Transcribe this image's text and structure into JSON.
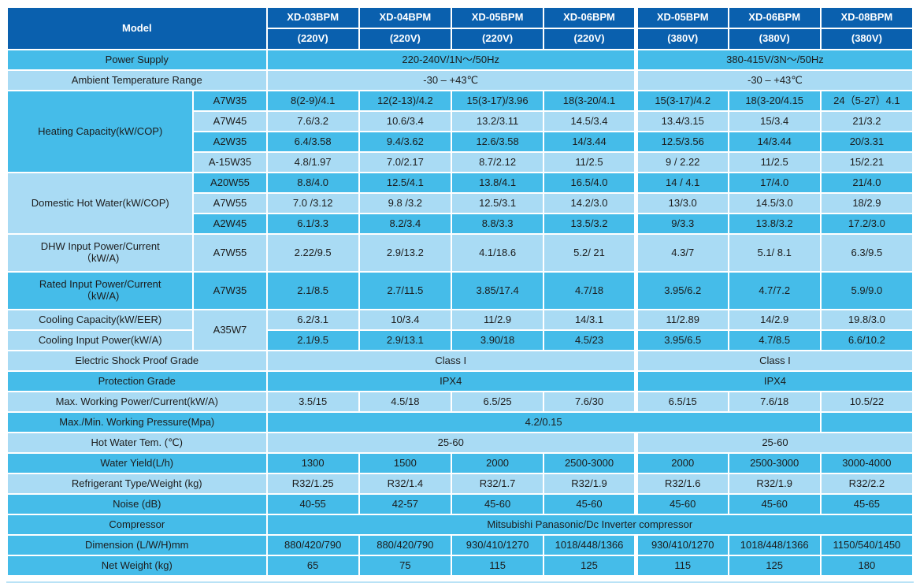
{
  "colors": {
    "header_blue": "#0a60ae",
    "row_medium_blue": "#45bce9",
    "row_light_blue": "#a9dbf4",
    "border_white": "#ffffff",
    "text_dark": "#1c1c1c",
    "header_text": "#ffffff",
    "bottom_divider": "#b9e2f6"
  },
  "table": {
    "header": {
      "model_label": "Model",
      "columns": [
        {
          "model": "XD-03BPM",
          "voltage": "(220V)"
        },
        {
          "model": "XD-04BPM",
          "voltage": "(220V)"
        },
        {
          "model": "XD-05BPM",
          "voltage": "(220V)"
        },
        {
          "model": "XD-06BPM",
          "voltage": "(220V)"
        },
        {
          "model": "XD-05BPM",
          "voltage": "(380V)"
        },
        {
          "model": "XD-06BPM",
          "voltage": "(380V)"
        },
        {
          "model": "XD-08BPM",
          "voltage": "(380V)"
        }
      ]
    },
    "rows": [
      {
        "label": "Power Supply",
        "label_colspan": 2,
        "shade": "m",
        "cells": [
          {
            "t": "220-240V/1N～/50Hz",
            "span": 4
          },
          {
            "t": "380-415V/3N～/50Hz",
            "span": 3
          }
        ]
      },
      {
        "label": "Ambient Temperature Range",
        "label_colspan": 2,
        "shade": "l",
        "cells": [
          {
            "t": "-30 – +43℃",
            "span": 4
          },
          {
            "t": "-30 – +43℃",
            "span": 3
          }
        ]
      },
      {
        "label": "Heating Capacity(kW/COP)",
        "label_colspan": 1,
        "label_rowspan": 4,
        "label_shade": "m",
        "sub": "A7W35",
        "shade": "m",
        "cells": [
          "8(2-9)/4.1",
          "12(2-13)/4.2",
          "15(3-17)/3.96",
          "18(3-20/4.1",
          "15(3-17)/4.2",
          "18(3-20/4.15",
          "24（5-27）4.1"
        ]
      },
      {
        "sub": "A7W45",
        "shade": "l",
        "cells": [
          "7.6/3.2",
          "10.6/3.4",
          "13.2/3.11",
          "14.5/3.4",
          "13.4/3.15",
          "15/3.4",
          "21/3.2"
        ]
      },
      {
        "sub": "A2W35",
        "shade": "m",
        "cells": [
          "6.4/3.58",
          "9.4/3.62",
          "12.6/3.58",
          "14/3.44",
          "12.5/3.56",
          "14/3.44",
          "20/3.31"
        ]
      },
      {
        "sub": "A-15W35",
        "shade": "l",
        "cells": [
          "4.8/1.97",
          "7.0/2.17",
          "8.7/2.12",
          "11/2.5",
          "9 / 2.22",
          "11/2.5",
          "15/2.21"
        ]
      },
      {
        "label": "Domestic Hot Water(kW/COP)",
        "label_colspan": 1,
        "label_rowspan": 3,
        "label_shade": "l",
        "sub": "A20W55",
        "shade": "m",
        "cells": [
          "8.8/4.0",
          "12.5/4.1",
          "13.8/4.1",
          "16.5/4.0",
          "14 / 4.1",
          "17/4.0",
          "21/4.0"
        ]
      },
      {
        "sub": "A7W55",
        "shade": "l",
        "cells": [
          "7.0 /3.12",
          "9.8 /3.2",
          "12.5/3.1",
          "14.2/3.0",
          "13/3.0",
          "14.5/3.0",
          "18/2.9"
        ]
      },
      {
        "sub": "A2W45",
        "shade": "m",
        "cells": [
          "6.1/3.3",
          "8.2/3.4",
          "8.8/3.3",
          "13.5/3.2",
          "9/3.3",
          "13.8/3.2",
          "17.2/3.0"
        ]
      },
      {
        "label": "DHW Input Power/Current\n（kW/A)",
        "label_colspan": 1,
        "sub": "A7W55",
        "shade": "l",
        "tall": true,
        "cells": [
          "2.22/9.5",
          "2.9/13.2",
          "4.1/18.6",
          "5.2/ 21",
          "4.3/7",
          "5.1/ 8.1",
          "6.3/9.5"
        ]
      },
      {
        "label": "Rated Input Power/Current\n（kW/A)",
        "label_colspan": 1,
        "sub": "A7W35",
        "shade": "m",
        "tall": true,
        "cells": [
          "2.1/8.5",
          "2.7/11.5",
          "3.85/17.4",
          "4.7/18",
          "3.95/6.2",
          "4.7/7.2",
          "5.9/9.0"
        ]
      },
      {
        "label": "Cooling Capacity(kW/EER)",
        "label_colspan": 1,
        "label_shade": "l",
        "sub": "A35W7",
        "sub_rowspan": 2,
        "sub_shade": "l",
        "shade": "l",
        "cells": [
          "6.2/3.1",
          "10/3.4",
          "11/2.9",
          "14/3.1",
          "11/2.89",
          "14/2.9",
          "19.8/3.0"
        ]
      },
      {
        "label": "Cooling Input Power(kW/A)",
        "label_colspan": 1,
        "label_shade": "l",
        "shade": "m",
        "cells": [
          "2.1/9.5",
          "2.9/13.1",
          "3.90/18",
          "4.5/23",
          "3.95/6.5",
          "4.7/8.5",
          "6.6/10.2"
        ]
      },
      {
        "label": "Electric Shock Proof Grade",
        "label_colspan": 2,
        "shade": "l",
        "cells": [
          {
            "t": "Class I",
            "span": 4
          },
          {
            "t": "Class I",
            "span": 3
          }
        ]
      },
      {
        "label": "Protection Grade",
        "label_colspan": 2,
        "shade": "m",
        "cells": [
          {
            "t": "IPX4",
            "span": 4
          },
          {
            "t": "IPX4",
            "span": 3
          }
        ]
      },
      {
        "label": "Max. Working Power/Current(kW/A)",
        "label_colspan": 2,
        "shade": "l",
        "cells": [
          "3.5/15",
          "4.5/18",
          "6.5/25",
          "7.6/30",
          "6.5/15",
          "7.6/18",
          "10.5/22"
        ]
      },
      {
        "label": "Max./Min. Working Pressure(Mpa)",
        "label_colspan": 2,
        "shade": "m",
        "cells": [
          {
            "t": "4.2/0.15",
            "span": 6
          },
          {
            "t": "",
            "span": 1
          }
        ]
      },
      {
        "label": "Hot  Water Tem. (℃)",
        "label_colspan": 2,
        "shade": "l",
        "cells": [
          {
            "t": "25-60",
            "span": 4
          },
          {
            "t": "25-60",
            "span": 3
          }
        ]
      },
      {
        "label": "Water Yield(L/h)",
        "label_colspan": 2,
        "shade": "m",
        "cells": [
          "1300",
          "1500",
          "2000",
          "2500-3000",
          "2000",
          "2500-3000",
          "3000-4000"
        ]
      },
      {
        "label": "Refrigerant Type/Weight (kg)",
        "label_colspan": 2,
        "shade": "l",
        "cells": [
          "R32/1.25",
          "R32/1.4",
          "R32/1.7",
          "R32/1.9",
          "R32/1.6",
          "R32/1.9",
          "R32/2.2"
        ]
      },
      {
        "label": "Noise (dB)",
        "label_colspan": 2,
        "shade": "m",
        "cells": [
          "40-55",
          "42-57",
          "45-60",
          "45-60",
          "45-60",
          "45-60",
          "45-65"
        ]
      },
      {
        "label": "Compressor",
        "label_colspan": 2,
        "shade": "m",
        "cells": [
          {
            "t": "Mitsubishi  Panasonic/Dc Inverter compressor",
            "span": 7
          }
        ]
      },
      {
        "label": "Dimension (L/W/H)mm",
        "label_colspan": 2,
        "shade": "m",
        "cells": [
          "880/420/790",
          "880/420/790",
          "930/410/1270",
          "1018/448/1366",
          "930/410/1270",
          "1018/448/1366",
          "1150/540/1450"
        ]
      },
      {
        "label": "Net Weight (kg)",
        "label_colspan": 2,
        "shade": "m",
        "cells": [
          "65",
          "75",
          "115",
          "125",
          "115",
          "125",
          "180"
        ]
      }
    ]
  }
}
